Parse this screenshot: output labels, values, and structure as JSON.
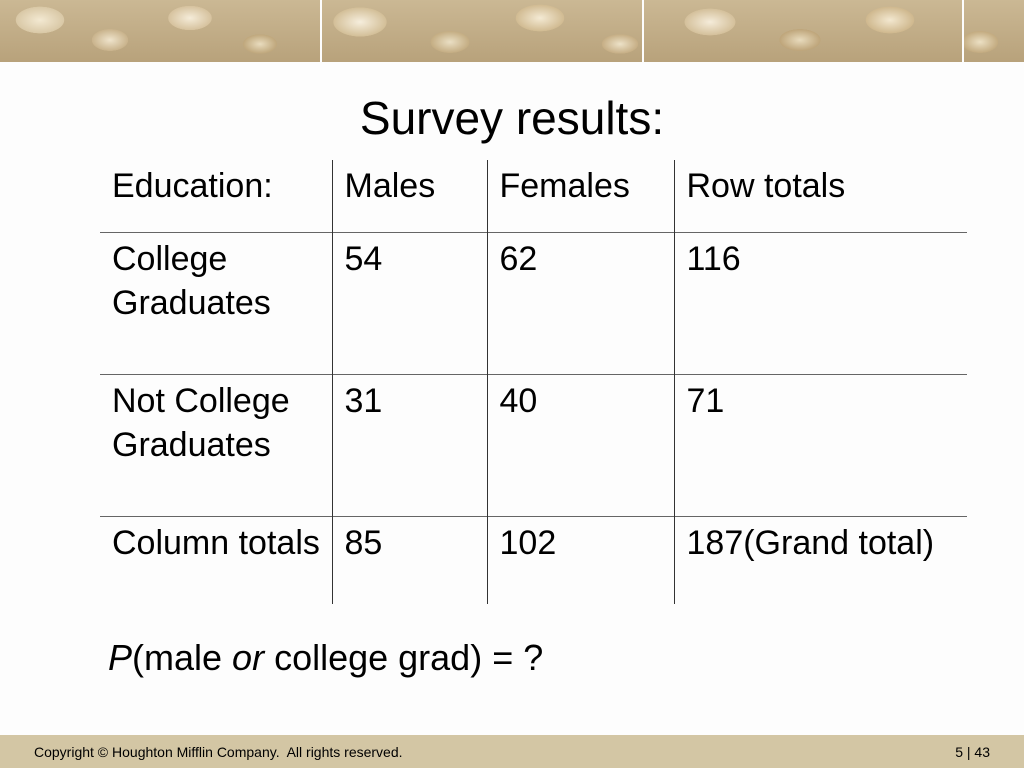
{
  "slide": {
    "title": "Survey results:",
    "table": {
      "header": [
        "Education:",
        "Males",
        "Females",
        "Row totals"
      ],
      "rows": [
        {
          "label": "College Graduates",
          "males": "54",
          "females": "62",
          "total": "116"
        },
        {
          "label": "Not College Graduates",
          "males": "31",
          "females": "40",
          "total": "71"
        },
        {
          "label": "Column totals",
          "males": "85",
          "females": "102",
          "total": "187(Grand total)"
        }
      ]
    },
    "question": {
      "p": "P",
      "part1": "(male ",
      "or": "or",
      "part2": " college grad) = ?"
    },
    "footer": {
      "copyright": "Copyright © Houghton Mifflin Company.  All rights reserved.",
      "page": "5 | 43"
    }
  }
}
